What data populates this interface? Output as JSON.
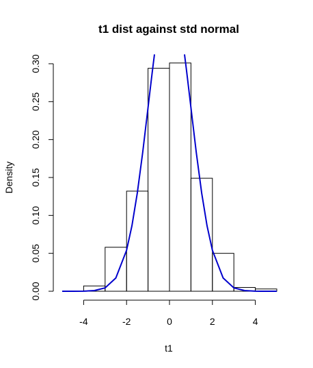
{
  "chart_data": {
    "type": "bar",
    "title": "t1 dist against std normal",
    "xlabel": "t1",
    "ylabel": "Density",
    "xlim": [
      -5,
      5
    ],
    "ylim": [
      0,
      0.3
    ],
    "xticks": [
      -4,
      -2,
      0,
      2,
      4
    ],
    "yticks": [
      0.0,
      0.05,
      0.1,
      0.15,
      0.2,
      0.25,
      0.3
    ],
    "ytick_labels": [
      "0.00",
      "0.05",
      "0.10",
      "0.15",
      "0.20",
      "0.25",
      "0.30"
    ],
    "grid": false,
    "histogram": {
      "name": "t1",
      "bins": [
        {
          "x0": -4,
          "x1": -3,
          "density": 0.007
        },
        {
          "x0": -3,
          "x1": -2,
          "density": 0.058
        },
        {
          "x0": -2,
          "x1": -1,
          "density": 0.132
        },
        {
          "x0": -1,
          "x1": 0,
          "density": 0.294
        },
        {
          "x0": 0,
          "x1": 1,
          "density": 0.301
        },
        {
          "x0": 1,
          "x1": 2,
          "density": 0.149
        },
        {
          "x0": 2,
          "x1": 3,
          "density": 0.05
        },
        {
          "x0": 3,
          "x1": 4,
          "density": 0.005
        },
        {
          "x0": 4,
          "x1": 5,
          "density": 0.003
        }
      ]
    },
    "curve": {
      "name": "std normal",
      "color": "#0000cc",
      "x": [
        -5,
        -4.5,
        -4,
        -3.5,
        -3,
        -2.5,
        -2,
        -1.75,
        -1.5,
        -1.25,
        -1,
        -0.9,
        -0.8,
        -0.75,
        -0.7,
        0.7,
        0.75,
        0.8,
        0.9,
        1,
        1.25,
        1.5,
        1.75,
        2,
        2.5,
        3,
        3.5,
        4,
        4.5,
        5
      ],
      "y": [
        0.0,
        0.0,
        0.0001,
        0.0009,
        0.0044,
        0.0175,
        0.054,
        0.0863,
        0.1295,
        0.1826,
        0.242,
        0.2661,
        0.2897,
        0.3011,
        0.3123,
        0.3123,
        0.3011,
        0.2897,
        0.2661,
        0.242,
        0.1826,
        0.1295,
        0.0863,
        0.054,
        0.0175,
        0.0044,
        0.0009,
        0.0001,
        0.0,
        0.0
      ]
    }
  }
}
